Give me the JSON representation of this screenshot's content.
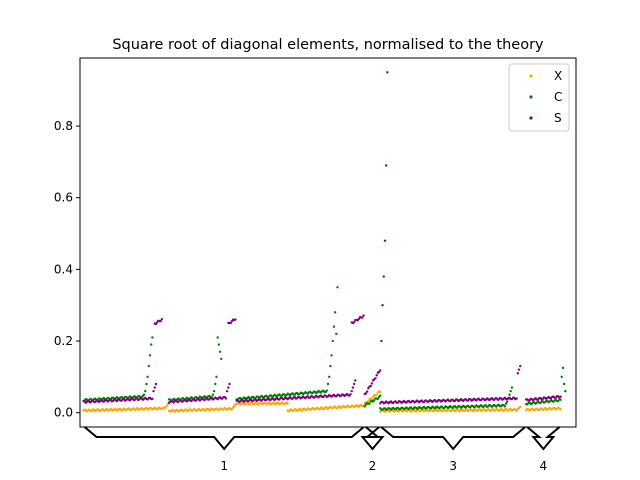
{
  "chart_data": {
    "type": "scatter",
    "title": "Square root of diagonal elements, normalised to the theory",
    "xlabel": "",
    "ylabel": "",
    "x_range": [
      -3,
      415
    ],
    "ylim": [
      -0.04,
      0.99
    ],
    "y_ticks": [
      0.0,
      0.2,
      0.4,
      0.6,
      0.8
    ],
    "y_tick_labels": [
      "0.0",
      "0.2",
      "0.4",
      "0.6",
      "0.8"
    ],
    "grid": false,
    "legend_position": "top-right",
    "colors": {
      "X": "#ffa500",
      "C": "#008000",
      "S": "#800080"
    },
    "groups": [
      {
        "label": "1",
        "start": 0,
        "end": 237
      },
      {
        "label": "2",
        "start": 237,
        "end": 250
      },
      {
        "label": "3",
        "start": 250,
        "end": 373
      },
      {
        "label": "4",
        "start": 373,
        "end": 402
      }
    ],
    "series": [
      {
        "name": "X",
        "color": "#ffa500",
        "segments": [
          {
            "x0": 0,
            "x1": 68,
            "y0": 0.006,
            "y1": 0.012,
            "tail": [
              0.014,
              0.018,
              0.024
            ]
          },
          {
            "x0": 72,
            "x1": 125,
            "y0": 0.005,
            "y1": 0.011,
            "tail": [
              0.014,
              0.018,
              0.024
            ]
          },
          {
            "x0": 129,
            "x1": 172,
            "y0": 0.025,
            "y1": 0.026,
            "tail": []
          },
          {
            "x0": 172,
            "x1": 237,
            "y0": 0.006,
            "y1": 0.02,
            "tail": [
              0.025,
              0.03
            ]
          },
          {
            "x0": 237,
            "x1": 250,
            "y0": 0.025,
            "y1": 0.06,
            "tail": []
          },
          {
            "x0": 250,
            "x1": 365,
            "y0": 0.005,
            "y1": 0.008,
            "tail": [
              0.01,
              0.013,
              0.016
            ]
          },
          {
            "x0": 373,
            "x1": 402,
            "y0": 0.008,
            "y1": 0.012,
            "tail": []
          }
        ]
      },
      {
        "name": "C",
        "color": "#008000",
        "segments": [
          {
            "x0": 0,
            "x1": 50,
            "y0": 0.035,
            "y1": 0.045,
            "tail": [
              0.05,
              0.06,
              0.08,
              0.1,
              0.13,
              0.16,
              0.19,
              0.21
            ]
          },
          {
            "x0": 72,
            "x1": 108,
            "y0": 0.035,
            "y1": 0.045,
            "tail": [
              0.05,
              0.06,
              0.08,
              0.1,
              0.21,
              0.19,
              0.17,
              0.15
            ]
          },
          {
            "x0": 129,
            "x1": 205,
            "y0": 0.038,
            "y1": 0.06,
            "tail": [
              0.08,
              0.1,
              0.13,
              0.16,
              0.2,
              0.24,
              0.28,
              0.22,
              0.35
            ]
          },
          {
            "x0": 237,
            "x1": 250,
            "y0": 0.02,
            "y1": 0.045,
            "tail": []
          },
          {
            "x0": 250,
            "x1": 355,
            "y0": 0.01,
            "y1": 0.02,
            "tail": [
              0.025,
              0.03,
              0.04,
              0.05,
              0.06,
              0.07
            ]
          },
          {
            "x0": 373,
            "x1": 402,
            "y0": 0.025,
            "y1": 0.035,
            "tail": [
              0.1,
              0.125,
              0.08,
              0.06
            ]
          }
        ]
      },
      {
        "name": "S",
        "color": "#800080",
        "segments": [
          {
            "x0": 0,
            "x1": 58,
            "y0": 0.03,
            "y1": 0.04,
            "tail": [
              0.06,
              0.07,
              0.08
            ]
          },
          {
            "x0": 60,
            "x1": 66,
            "y0": 0.248,
            "y1": 0.26,
            "tail": []
          },
          {
            "x0": 72,
            "x1": 120,
            "y0": 0.03,
            "y1": 0.042,
            "tail": [
              0.06,
              0.07,
              0.08
            ]
          },
          {
            "x0": 122,
            "x1": 128,
            "y0": 0.248,
            "y1": 0.262,
            "tail": []
          },
          {
            "x0": 129,
            "x1": 225,
            "y0": 0.032,
            "y1": 0.05,
            "tail": [
              0.06,
              0.07,
              0.08,
              0.09
            ]
          },
          {
            "x0": 226,
            "x1": 236,
            "y0": 0.25,
            "y1": 0.27,
            "tail": []
          },
          {
            "x0": 237,
            "x1": 250,
            "y0": 0.05,
            "y1": 0.12,
            "tail": [
              0.2,
              0.3,
              0.38,
              0.48,
              0.69,
              0.95
            ]
          },
          {
            "x0": 250,
            "x1": 365,
            "y0": 0.028,
            "y1": 0.04,
            "tail": [
              0.11,
              0.12,
              0.13
            ]
          },
          {
            "x0": 373,
            "x1": 402,
            "y0": 0.035,
            "y1": 0.045,
            "tail": []
          }
        ]
      }
    ]
  }
}
